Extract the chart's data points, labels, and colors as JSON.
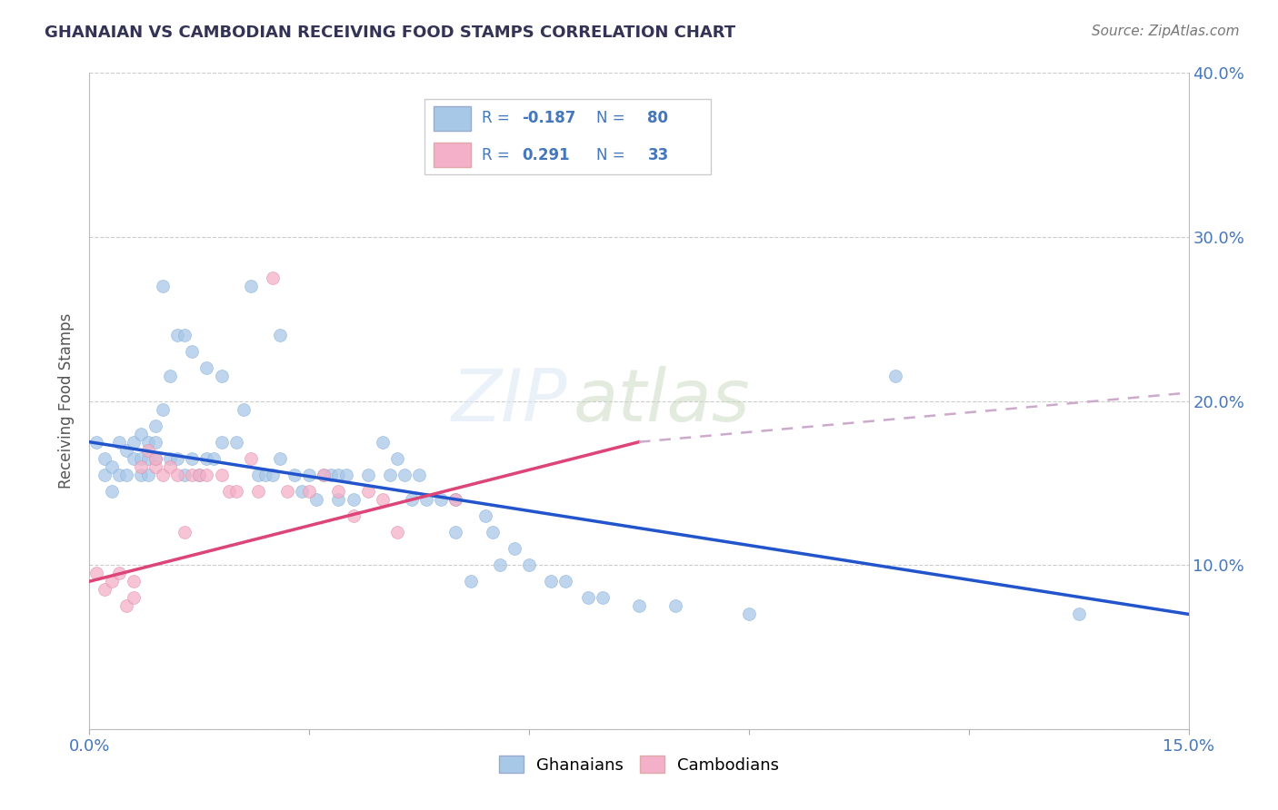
{
  "title": "GHANAIAN VS CAMBODIAN RECEIVING FOOD STAMPS CORRELATION CHART",
  "source": "Source: ZipAtlas.com",
  "ylabel": "Receiving Food Stamps",
  "xlim": [
    0.0,
    0.15
  ],
  "ylim": [
    0.0,
    0.4
  ],
  "xticks": [
    0.0,
    0.03,
    0.06,
    0.09,
    0.12,
    0.15
  ],
  "xticklabels": [
    "0.0%",
    "",
    "",
    "",
    "",
    "15.0%"
  ],
  "yticks": [
    0.0,
    0.1,
    0.2,
    0.3,
    0.4
  ],
  "yticklabels_right": [
    "",
    "10.0%",
    "20.0%",
    "30.0%",
    "40.0%"
  ],
  "watermark_zip": "ZIP",
  "watermark_atlas": "atlas",
  "blue_color": "#a8c8e8",
  "pink_color": "#f4b0c8",
  "blue_line_color": "#2255cc",
  "pink_line_color": "#dd4477",
  "dashed_line_color": "#ccaacc",
  "title_color": "#333355",
  "tick_color": "#4477bb",
  "legend_text_color": "#4477bb",
  "legend_r_color": "#4477bb",
  "legend_n_color": "#4477bb",
  "ghanaian_r": -0.187,
  "ghanaian_n": 80,
  "cambodian_r": 0.291,
  "cambodian_n": 33,
  "ghanaian_points": [
    [
      0.001,
      0.175
    ],
    [
      0.002,
      0.155
    ],
    [
      0.002,
      0.165
    ],
    [
      0.003,
      0.145
    ],
    [
      0.003,
      0.16
    ],
    [
      0.004,
      0.175
    ],
    [
      0.004,
      0.155
    ],
    [
      0.005,
      0.155
    ],
    [
      0.005,
      0.17
    ],
    [
      0.006,
      0.165
    ],
    [
      0.006,
      0.175
    ],
    [
      0.007,
      0.155
    ],
    [
      0.007,
      0.165
    ],
    [
      0.007,
      0.18
    ],
    [
      0.008,
      0.155
    ],
    [
      0.008,
      0.165
    ],
    [
      0.008,
      0.175
    ],
    [
      0.009,
      0.165
    ],
    [
      0.009,
      0.185
    ],
    [
      0.009,
      0.175
    ],
    [
      0.01,
      0.195
    ],
    [
      0.01,
      0.27
    ],
    [
      0.011,
      0.165
    ],
    [
      0.011,
      0.215
    ],
    [
      0.012,
      0.24
    ],
    [
      0.012,
      0.165
    ],
    [
      0.013,
      0.155
    ],
    [
      0.013,
      0.24
    ],
    [
      0.014,
      0.165
    ],
    [
      0.014,
      0.23
    ],
    [
      0.015,
      0.155
    ],
    [
      0.016,
      0.165
    ],
    [
      0.016,
      0.22
    ],
    [
      0.017,
      0.165
    ],
    [
      0.018,
      0.175
    ],
    [
      0.018,
      0.215
    ],
    [
      0.02,
      0.175
    ],
    [
      0.021,
      0.195
    ],
    [
      0.022,
      0.27
    ],
    [
      0.023,
      0.155
    ],
    [
      0.024,
      0.155
    ],
    [
      0.025,
      0.155
    ],
    [
      0.026,
      0.165
    ],
    [
      0.026,
      0.24
    ],
    [
      0.028,
      0.155
    ],
    [
      0.029,
      0.145
    ],
    [
      0.03,
      0.155
    ],
    [
      0.031,
      0.14
    ],
    [
      0.032,
      0.155
    ],
    [
      0.033,
      0.155
    ],
    [
      0.034,
      0.14
    ],
    [
      0.034,
      0.155
    ],
    [
      0.035,
      0.155
    ],
    [
      0.036,
      0.14
    ],
    [
      0.038,
      0.155
    ],
    [
      0.04,
      0.175
    ],
    [
      0.041,
      0.155
    ],
    [
      0.042,
      0.165
    ],
    [
      0.043,
      0.155
    ],
    [
      0.044,
      0.14
    ],
    [
      0.045,
      0.155
    ],
    [
      0.046,
      0.14
    ],
    [
      0.048,
      0.14
    ],
    [
      0.05,
      0.12
    ],
    [
      0.05,
      0.14
    ],
    [
      0.052,
      0.09
    ],
    [
      0.054,
      0.13
    ],
    [
      0.055,
      0.12
    ],
    [
      0.056,
      0.1
    ],
    [
      0.058,
      0.11
    ],
    [
      0.06,
      0.1
    ],
    [
      0.063,
      0.09
    ],
    [
      0.065,
      0.09
    ],
    [
      0.068,
      0.08
    ],
    [
      0.07,
      0.08
    ],
    [
      0.075,
      0.075
    ],
    [
      0.08,
      0.075
    ],
    [
      0.09,
      0.07
    ],
    [
      0.11,
      0.215
    ],
    [
      0.135,
      0.07
    ]
  ],
  "cambodian_points": [
    [
      0.001,
      0.095
    ],
    [
      0.002,
      0.085
    ],
    [
      0.003,
      0.09
    ],
    [
      0.004,
      0.095
    ],
    [
      0.005,
      0.075
    ],
    [
      0.006,
      0.08
    ],
    [
      0.006,
      0.09
    ],
    [
      0.007,
      0.16
    ],
    [
      0.008,
      0.17
    ],
    [
      0.009,
      0.16
    ],
    [
      0.009,
      0.165
    ],
    [
      0.01,
      0.155
    ],
    [
      0.011,
      0.16
    ],
    [
      0.012,
      0.155
    ],
    [
      0.013,
      0.12
    ],
    [
      0.014,
      0.155
    ],
    [
      0.015,
      0.155
    ],
    [
      0.016,
      0.155
    ],
    [
      0.018,
      0.155
    ],
    [
      0.019,
      0.145
    ],
    [
      0.02,
      0.145
    ],
    [
      0.022,
      0.165
    ],
    [
      0.023,
      0.145
    ],
    [
      0.025,
      0.275
    ],
    [
      0.027,
      0.145
    ],
    [
      0.03,
      0.145
    ],
    [
      0.032,
      0.155
    ],
    [
      0.034,
      0.145
    ],
    [
      0.036,
      0.13
    ],
    [
      0.038,
      0.145
    ],
    [
      0.04,
      0.14
    ],
    [
      0.042,
      0.12
    ],
    [
      0.05,
      0.14
    ]
  ],
  "blue_line": {
    "x0": 0.0,
    "y0": 0.175,
    "x1": 0.15,
    "y1": 0.07
  },
  "pink_line": {
    "x0": 0.0,
    "y0": 0.09,
    "x1": 0.075,
    "y1": 0.175
  },
  "pink_dashed_line": {
    "x0": 0.075,
    "y0": 0.175,
    "x1": 0.15,
    "y1": 0.205
  },
  "ghanaian_size_base": 100,
  "cambodian_size_base": 100
}
